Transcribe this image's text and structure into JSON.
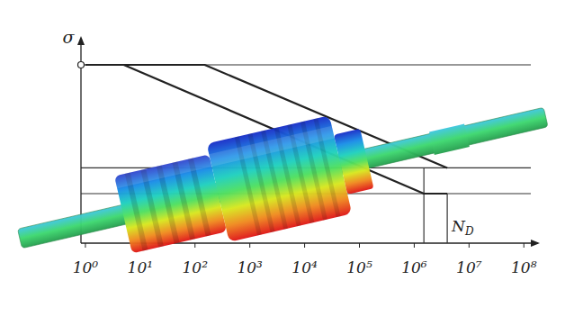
{
  "chart_data": {
    "type": "line",
    "y_label": "σ",
    "log": "x",
    "grid": true,
    "tick_labels": "x",
    "xlim": [
      0.83,
      134000000
    ],
    "ylim": [
      0,
      100
    ],
    "xticks": [
      {
        "value": 1,
        "label": "10⁰"
      },
      {
        "value": 10,
        "label": "10¹"
      },
      {
        "value": 100,
        "label": "10²"
      },
      {
        "value": 1000,
        "label": "10³"
      },
      {
        "value": 10000,
        "label": "10⁴"
      },
      {
        "value": 100000,
        "label": "10⁵"
      },
      {
        "value": 1000000,
        "label": "10⁶"
      },
      {
        "value": 10000000,
        "label": "10⁷"
      },
      {
        "value": 100000000,
        "label": "10⁸"
      }
    ],
    "yticks": [
      25,
      38,
      90
    ],
    "series": [
      {
        "color": "#222222",
        "x": [
          1,
          150,
          4000000
        ],
        "values": [
          90,
          90,
          38
        ]
      },
      {
        "color": "#222222",
        "x": [
          1,
          5,
          1500000,
          4000000
        ],
        "values": [
          90,
          90,
          25,
          25
        ]
      }
    ],
    "vlines": [
      {
        "x": 1500000,
        "ytop": 38
      },
      {
        "x": 4000000,
        "ytop": 25,
        "label": "N",
        "subscript": "D"
      }
    ]
  }
}
